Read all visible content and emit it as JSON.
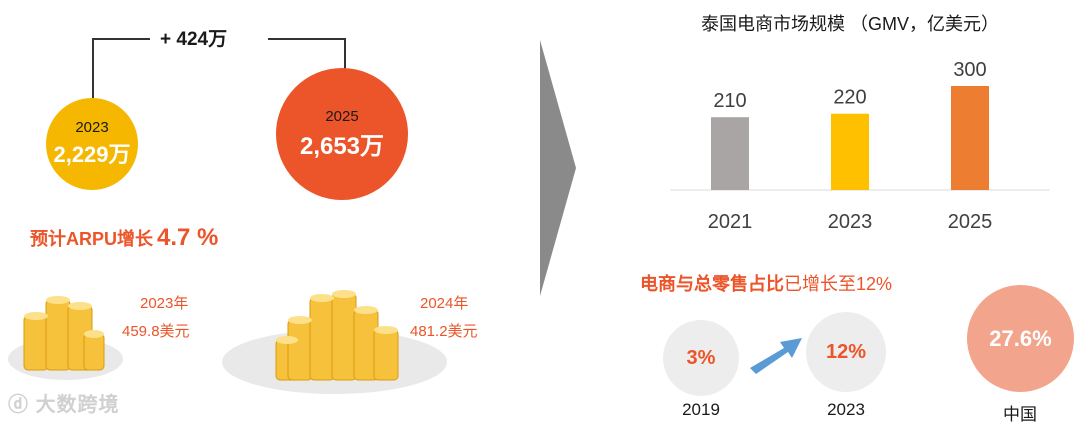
{
  "left": {
    "increase_label": "+ 424万",
    "circle_2023": {
      "year": "2023",
      "value": "2,229万"
    },
    "circle_2025": {
      "year": "2025",
      "value": "2,653万"
    },
    "arpu_label": "预计ARPU增长",
    "arpu_pct": "4.7 %",
    "coins": [
      {
        "year": "2023年",
        "amount": "459.8美元"
      },
      {
        "year": "2024年",
        "amount": "481.2美元"
      }
    ],
    "watermark": "大数跨境"
  },
  "chart_data": {
    "type": "bar",
    "title": "泰国电商市场规模 （GMV，亿美元）",
    "categories": [
      "2021",
      "2023",
      "2025"
    ],
    "values": [
      210,
      220,
      300
    ],
    "value_labels": [
      "210",
      "220",
      "300"
    ],
    "colors": [
      "#aaa5a5",
      "#ffc000",
      "#ed7d31"
    ],
    "ylim": [
      0,
      300
    ]
  },
  "share": {
    "title_bold": "电商与总零售占比",
    "title_rest": "已增长至12%",
    "items": [
      {
        "pct": "3%",
        "year": "2019"
      },
      {
        "pct": "12%",
        "year": "2023"
      }
    ],
    "china": {
      "pct": "27.6%",
      "label": "中国"
    }
  },
  "colors": {
    "accent_orange": "#ec5429",
    "gold": "#f5b700",
    "arrow_gray": "#8a8a8a",
    "blue_arrow": "#5b9bd5"
  }
}
